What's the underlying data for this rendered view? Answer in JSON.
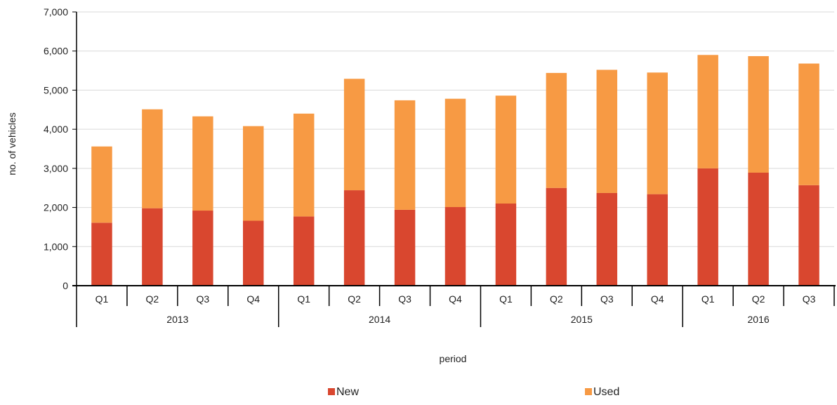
{
  "chart_data": {
    "type": "bar",
    "stacked": true,
    "title": "",
    "xlabel": "period",
    "ylabel": "no. of vehicles",
    "ylim": [
      0,
      7000
    ],
    "yticks": [
      0,
      1000,
      2000,
      3000,
      4000,
      5000,
      6000,
      7000
    ],
    "ytick_labels": [
      "0",
      "1,000",
      "2,000",
      "3,000",
      "4,000",
      "5,000",
      "6,000",
      "7,000"
    ],
    "grid": true,
    "legend_position": "bottom",
    "categories": [
      "Q1",
      "Q2",
      "Q3",
      "Q4",
      "Q1",
      "Q2",
      "Q3",
      "Q4",
      "Q1",
      "Q2",
      "Q3",
      "Q4",
      "Q1",
      "Q2",
      "Q3"
    ],
    "groups": [
      {
        "label": "2013",
        "count": 4
      },
      {
        "label": "2014",
        "count": 4
      },
      {
        "label": "2015",
        "count": 4
      },
      {
        "label": "2016",
        "count": 3
      }
    ],
    "series": [
      {
        "name": "New",
        "color": "#d9472f",
        "values": [
          1610,
          1980,
          1920,
          1660,
          1770,
          2440,
          1940,
          2010,
          2100,
          2500,
          2370,
          2340,
          3000,
          2890,
          2570
        ]
      },
      {
        "name": "Used",
        "color": "#f79a44",
        "values": [
          1950,
          2530,
          2410,
          2420,
          2630,
          2850,
          2800,
          2770,
          2760,
          2940,
          3150,
          3110,
          2900,
          2980,
          3110
        ]
      }
    ]
  }
}
